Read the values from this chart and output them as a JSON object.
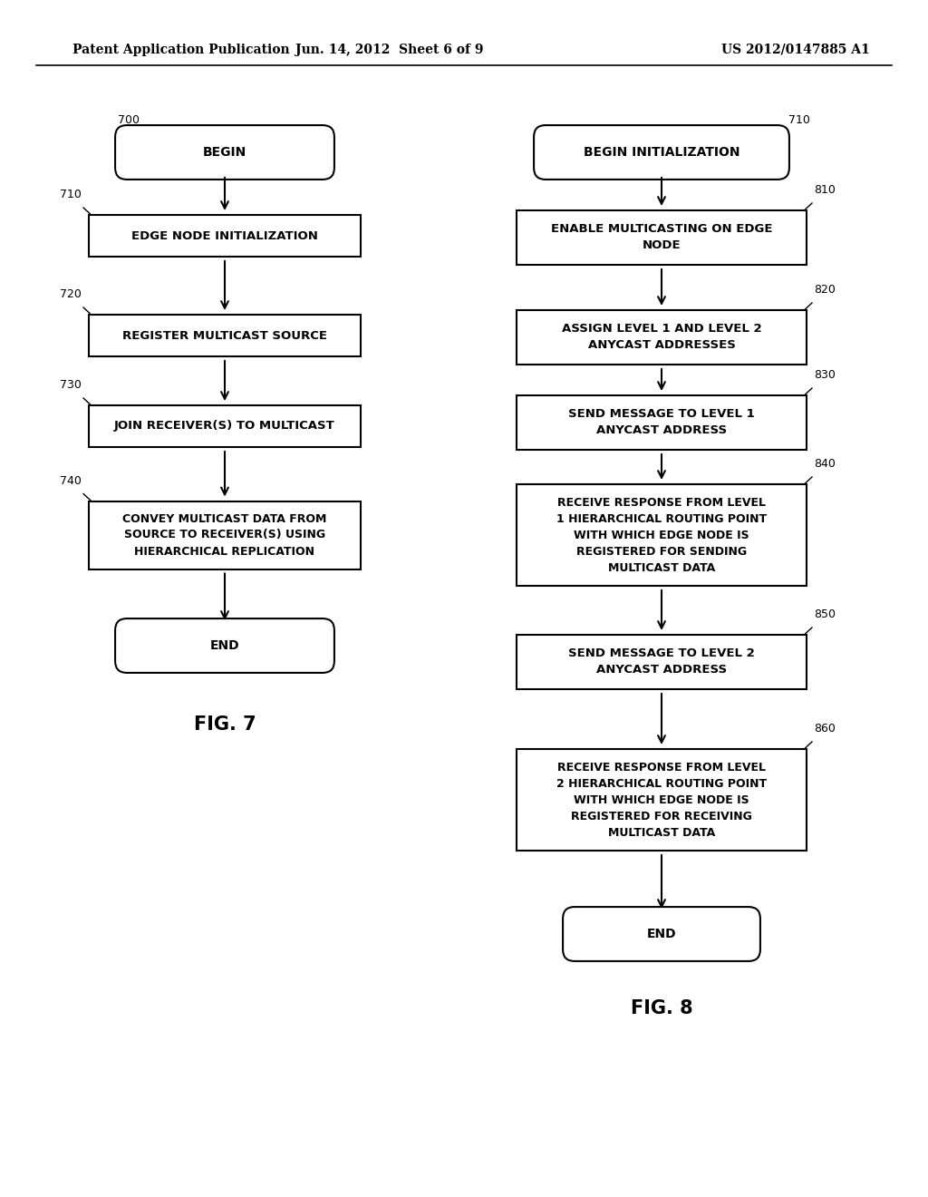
{
  "bg_color": "#ffffff",
  "header_left": "Patent Application Publication",
  "header_center": "Jun. 14, 2012  Sheet 6 of 9",
  "header_right": "US 2012/0147885 A1",
  "fig7_title": "FIG. 7",
  "fig8_title": "FIG. 8"
}
